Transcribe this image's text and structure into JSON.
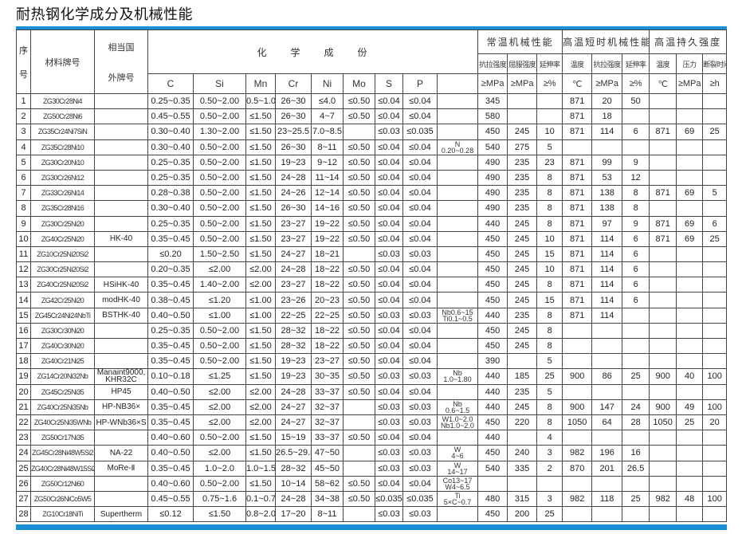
{
  "title": "耐热钢化学成分及机械性能",
  "colors": {
    "accent_bar": "#1a8fd8",
    "grid": "#444444"
  },
  "header": {
    "seq": "序\n号",
    "seq_top": "序",
    "seq_bottom": "号",
    "material": "材料牌号",
    "foreign_top": "相当国",
    "foreign_bottom": "外牌号",
    "chem": "化　　学　　成　　份",
    "elements": [
      "C",
      "Si",
      "Mn",
      "Cr",
      "Ni",
      "Mo",
      "S",
      "P",
      ""
    ],
    "groups": [
      "常温机械性能",
      "高温短时机械性能",
      "高温持久强度"
    ],
    "subheads": [
      "抗拉强度",
      "屈服强度",
      "延伸率",
      "温度",
      "抗拉强度",
      "延伸率",
      "温度",
      "压力",
      "断裂时间"
    ],
    "units": [
      "≥MPa",
      "≥MPa",
      "≥%",
      "℃",
      "≥MPa",
      "≥%",
      "℃",
      "≥MPa",
      "≥h"
    ]
  },
  "rows": [
    [
      "1",
      "ZG30Cr28Ni4",
      "",
      "0.25~0.35",
      "0.50~2.00",
      "0.5~1.0",
      "26~30",
      "≤4.0",
      "≤0.50",
      "≤0.04",
      "≤0.04",
      "",
      "345",
      "",
      "",
      "871",
      "20",
      "50",
      "",
      "",
      ""
    ],
    [
      "2",
      "ZG50Cr28Ni6",
      "",
      "0.45~0.55",
      "0.50~2.00",
      "≤1.50",
      "26~30",
      "4~7",
      "≤0.50",
      "≤0.04",
      "≤0.04",
      "",
      "580",
      "",
      "",
      "871",
      "18",
      "",
      "",
      "",
      ""
    ],
    [
      "3",
      "ZG35Cr24Ni7SiN",
      "",
      "0.30~0.40",
      "1.30~2.00",
      "≤1.50",
      "23~25.5",
      "7.0~8.5",
      "",
      "≤0.03",
      "≤0.035",
      "",
      "450",
      "245",
      "10",
      "871",
      "114",
      "6",
      "871",
      "69",
      "25"
    ],
    [
      "4",
      "ZG35Cr28Ni10",
      "",
      "0.30~0.40",
      "0.50~2.00",
      "≤1.50",
      "26~30",
      "8~11",
      "≤0.50",
      "≤0.04",
      "≤0.04",
      "N\n0.20~0.28",
      "540",
      "275",
      "5",
      "",
      "",
      "",
      "",
      "",
      ""
    ],
    [
      "5",
      "ZG30Cr20Ni10",
      "",
      "0.25~0.35",
      "0.50~2.00",
      "≤1.50",
      "19~23",
      "9~12",
      "≤0.50",
      "≤0.04",
      "≤0.04",
      "",
      "490",
      "235",
      "23",
      "871",
      "99",
      "9",
      "",
      "",
      ""
    ],
    [
      "6",
      "ZG30Cr26Ni12",
      "",
      "0.25~0.35",
      "0.50~2.00",
      "≤1.50",
      "24~28",
      "11~14",
      "≤0.50",
      "≤0.04",
      "≤0.04",
      "",
      "490",
      "235",
      "8",
      "871",
      "53",
      "12",
      "",
      "",
      ""
    ],
    [
      "7",
      "ZG33Cr26Ni14",
      "",
      "0.28~0.38",
      "0.50~2.00",
      "≤1.50",
      "24~26",
      "12~14",
      "≤0.50",
      "≤0.04",
      "≤0.04",
      "",
      "490",
      "235",
      "8",
      "871",
      "138",
      "8",
      "871",
      "69",
      "5"
    ],
    [
      "8",
      "ZG35Cr28Ni16",
      "",
      "0.30~0.40",
      "0.50~2.00",
      "≤1.50",
      "26~30",
      "14~16",
      "≤0.50",
      "≤0.04",
      "≤0.04",
      "",
      "490",
      "235",
      "8",
      "871",
      "138",
      "8",
      "",
      "",
      ""
    ],
    [
      "9",
      "ZG30Cr25Ni20",
      "",
      "0.25~0.35",
      "0.50~2.00",
      "≤1.50",
      "23~27",
      "19~22",
      "≤0.50",
      "≤0.04",
      "≤0.04",
      "",
      "440",
      "245",
      "8",
      "871",
      "97",
      "9",
      "871",
      "69",
      "6"
    ],
    [
      "10",
      "ZG40Cr25Ni20",
      "HK-40",
      "0.35~0.45",
      "0.50~2.00",
      "≤1.50",
      "23~27",
      "19~22",
      "≤0.50",
      "≤0.04",
      "≤0.04",
      "",
      "450",
      "245",
      "10",
      "871",
      "114",
      "6",
      "871",
      "69",
      "25"
    ],
    [
      "11",
      "ZG10Cr25Ni20Si2",
      "",
      "≤0.20",
      "1.50~2.50",
      "≤1.50",
      "24~27",
      "18~21",
      "",
      "≤0.03",
      "≤0.03",
      "",
      "450",
      "245",
      "15",
      "871",
      "114",
      "6",
      "",
      "",
      ""
    ],
    [
      "12",
      "ZG30Cr25Ni20Si2",
      "",
      "0.20~0.35",
      "≤2.00",
      "≤2.00",
      "24~28",
      "18~22",
      "≤0.50",
      "≤0.04",
      "≤0.04",
      "",
      "450",
      "245",
      "10",
      "871",
      "114",
      "6",
      "",
      "",
      ""
    ],
    [
      "13",
      "ZG40Cr25Ni20Si2",
      "HSiHK-40",
      "0.35~0.45",
      "1.40~2.00",
      "≤2.00",
      "23~27",
      "18~22",
      "≤0.50",
      "≤0.04",
      "≤0.04",
      "",
      "450",
      "245",
      "8",
      "871",
      "114",
      "6",
      "",
      "",
      ""
    ],
    [
      "14",
      "ZG42Cr25Ni20",
      "modHK-40",
      "0.38~0.45",
      "≤1.20",
      "≤1.00",
      "23~26",
      "20~23",
      "≤0.50",
      "≤0.04",
      "≤0.04",
      "",
      "450",
      "245",
      "15",
      "871",
      "114",
      "6",
      "",
      "",
      ""
    ],
    [
      "15",
      "ZG45Cr24Ni24NbTi",
      "BSTHK-40",
      "0.40~0.50",
      "≤1.00",
      "≤1.00",
      "22~25",
      "22~25",
      "≤0.50",
      "≤0.03",
      "≤0.03",
      "Nb0.6~15\nTi0.1~0.5",
      "440",
      "235",
      "8",
      "871",
      "114",
      "",
      "",
      "",
      ""
    ],
    [
      "16",
      "ZG30Cr30Ni20",
      "",
      "0.25~0.35",
      "0.50~2.00",
      "≤1.50",
      "28~32",
      "18~22",
      "≤0.50",
      "≤0.04",
      "≤0.04",
      "",
      "450",
      "245",
      "8",
      "",
      "",
      "",
      "",
      "",
      ""
    ],
    [
      "17",
      "ZG40Cr30Ni20",
      "",
      "0.35~0.45",
      "0.50~2.00",
      "≤1.50",
      "28~32",
      "18~22",
      "≤0.50",
      "≤0.04",
      "≤0.04",
      "",
      "450",
      "245",
      "8",
      "",
      "",
      "",
      "",
      "",
      ""
    ],
    [
      "18",
      "ZG40Cr21Ni25",
      "",
      "0.35~0.45",
      "0.50~2.00",
      "≤1.50",
      "19~23",
      "23~27",
      "≤0.50",
      "≤0.04",
      "≤0.04",
      "",
      "390",
      "",
      "5",
      "",
      "",
      "",
      "",
      "",
      ""
    ],
    [
      "19",
      "ZG14Cr20Ni32Nb",
      "Manaint9000,\nKHR32C",
      "0.10~0.18",
      "≤1.25",
      "≤1.50",
      "19~23",
      "30~35",
      "≤0.50",
      "≤0.03",
      "≤0.03",
      "Nb\n1.0~1.80",
      "440",
      "185",
      "25",
      "900",
      "86",
      "25",
      "900",
      "40",
      "100"
    ],
    [
      "20",
      "ZG45Cr25Ni35",
      "HP45",
      "0.40~0.50",
      "≤2.00",
      "≤2.00",
      "24~28",
      "33~37",
      "≤0.50",
      "≤0.04",
      "≤0.04",
      "",
      "440",
      "235",
      "5",
      "",
      "",
      "",
      "",
      "",
      ""
    ],
    [
      "21",
      "ZG40Cr25Ni35Nb",
      "HP-NB36×",
      "0.35~0.45",
      "≤2.00",
      "≤2.00",
      "24~27",
      "32~37",
      "",
      "≤0.03",
      "≤0.03",
      "Nb\n0.6~1.5",
      "440",
      "245",
      "8",
      "900",
      "147",
      "24",
      "900",
      "49",
      "100"
    ],
    [
      "22",
      "ZG40Cr25Ni35WNb",
      "HP-WNb36×S",
      "0.35~0.45",
      "≤2.00",
      "≤2.00",
      "24~27",
      "32~37",
      "",
      "≤0.03",
      "≤0.03",
      "W1.0~2.0\nNb1.0~2.0",
      "450",
      "220",
      "8",
      "1050",
      "64",
      "28",
      "1050",
      "25",
      "20"
    ],
    [
      "23",
      "ZG50Cr17Ni35",
      "",
      "0.40~0.60",
      "0.50~2.00",
      "≤1.50",
      "15~19",
      "33~37",
      "≤0.50",
      "≤0.04",
      "≤0.04",
      "",
      "440",
      "",
      "4",
      "",
      "",
      "",
      "",
      "",
      ""
    ],
    [
      "24",
      "ZG45Cr28Ni48W5Si2",
      "NA-22",
      "0.40~0.50",
      "≤2.00",
      "≤1.50",
      "26.5~29.5",
      "47~50",
      "",
      "≤0.03",
      "≤0.03",
      "W\n4~6",
      "450",
      "240",
      "3",
      "982",
      "196",
      "16",
      "",
      "",
      ""
    ],
    [
      "25",
      "ZG40Cr28Ni48W15Si2",
      "MoRe-Ⅱ",
      "0.35~0.45",
      "1.0~2.0",
      "1.0~1.5",
      "28~32",
      "45~50",
      "",
      "≤0.03",
      "≤0.03",
      "W\n14~17",
      "540",
      "335",
      "2",
      "870",
      "201",
      "26.5",
      "",
      "",
      ""
    ],
    [
      "26",
      "ZG50Cr12Ni60",
      "",
      "0.40~0.60",
      "0.50~2.00",
      "≤1.50",
      "10~14",
      "58~62",
      "≤0.50",
      "≤0.04",
      "≤0.04",
      "Co13~17\nW4~6.5",
      "",
      "",
      "",
      "",
      "",
      "",
      "",
      "",
      ""
    ],
    [
      "27",
      "ZG50Cr26NiCo5W5",
      "",
      "0.45~0.55",
      "0.75~1.6",
      "0.1~0.7",
      "24~28",
      "34~38",
      "≤0.50",
      "≤0.035",
      "≤0.035",
      "Ti\n5×C~0.7",
      "480",
      "315",
      "3",
      "982",
      "118",
      "25",
      "982",
      "48",
      "100"
    ],
    [
      "28",
      "ZG10Cr18NiTi",
      "Supertherm",
      "≤0.12",
      "≤1.50",
      "0.8~2.0",
      "17~20",
      "8~11",
      "",
      "≤0.03",
      "≤0.03",
      "",
      "450",
      "200",
      "25",
      "",
      "",
      "",
      "",
      "",
      ""
    ]
  ]
}
